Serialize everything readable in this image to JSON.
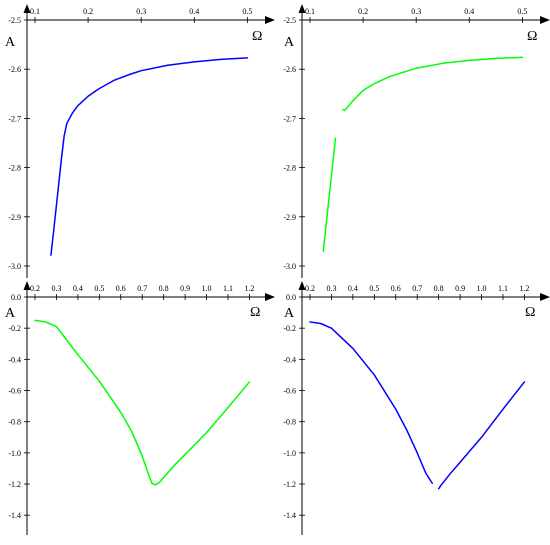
{
  "chart_data": [
    {
      "type": "line",
      "axis_names": {
        "x": "Ω",
        "y": "A"
      },
      "xlim": [
        0.1,
        0.52
      ],
      "ylim": [
        -3.0,
        -2.5
      ],
      "xticks": [
        0.1,
        0.2,
        0.3,
        0.4,
        0.5
      ],
      "xtick_labels": [
        "0.1",
        "0.2",
        "0.3",
        "0.4",
        "0.5"
      ],
      "yticks": [
        -2.5,
        -2.6,
        -2.7,
        -2.8,
        -2.9,
        -3.0
      ],
      "ytick_labels": [
        "-2.5",
        "-2.6",
        "-2.7",
        "-2.8",
        "-2.9",
        "-3.0"
      ],
      "grid": false,
      "series": [
        {
          "color": "#0000ff",
          "segments": [
            [
              [
                0.13,
                -2.978
              ],
              [
                0.135,
                -2.93
              ],
              [
                0.14,
                -2.88
              ],
              [
                0.145,
                -2.83
              ],
              [
                0.15,
                -2.78
              ],
              [
                0.155,
                -2.735
              ],
              [
                0.16,
                -2.71
              ],
              [
                0.17,
                -2.69
              ],
              [
                0.18,
                -2.675
              ],
              [
                0.2,
                -2.655
              ],
              [
                0.22,
                -2.64
              ],
              [
                0.25,
                -2.622
              ],
              [
                0.28,
                -2.61
              ],
              [
                0.3,
                -2.603
              ],
              [
                0.35,
                -2.592
              ],
              [
                0.4,
                -2.585
              ],
              [
                0.45,
                -2.58
              ],
              [
                0.5,
                -2.577
              ]
            ]
          ]
        }
      ]
    },
    {
      "type": "line",
      "axis_names": {
        "x": "Ω",
        "y": "A"
      },
      "xlim": [
        0.1,
        0.52
      ],
      "ylim": [
        -3.0,
        -2.5
      ],
      "xticks": [
        0.1,
        0.2,
        0.3,
        0.4,
        0.5
      ],
      "xtick_labels": [
        "0.1",
        "0.2",
        "0.3",
        "0.4",
        "0.5"
      ],
      "yticks": [
        -2.5,
        -2.6,
        -2.7,
        -2.8,
        -2.9,
        -3.0
      ],
      "ytick_labels": [
        "-2.5",
        "-2.6",
        "-2.7",
        "-2.8",
        "-2.9",
        "-3.0"
      ],
      "grid": false,
      "series": [
        {
          "color": "#00ff00",
          "segments": [
            [
              [
                0.125,
                -2.97
              ],
              [
                0.13,
                -2.92
              ],
              [
                0.135,
                -2.87
              ],
              [
                0.14,
                -2.82
              ],
              [
                0.145,
                -2.77
              ],
              [
                0.148,
                -2.74
              ]
            ],
            [
              [
                0.162,
                -2.682
              ],
              [
                0.165,
                -2.684
              ],
              [
                0.17,
                -2.678
              ],
              [
                0.18,
                -2.665
              ],
              [
                0.2,
                -2.643
              ],
              [
                0.22,
                -2.63
              ],
              [
                0.25,
                -2.615
              ],
              [
                0.3,
                -2.598
              ],
              [
                0.35,
                -2.588
              ],
              [
                0.4,
                -2.582
              ],
              [
                0.45,
                -2.578
              ],
              [
                0.5,
                -2.576
              ]
            ]
          ]
        }
      ]
    },
    {
      "type": "line",
      "axis_names": {
        "x": "Ω",
        "y": "A"
      },
      "xlim": [
        0.2,
        1.24
      ],
      "ylim": [
        -1.45,
        0.0
      ],
      "xticks": [
        0.2,
        0.3,
        0.4,
        0.5,
        0.6,
        0.7,
        0.8,
        0.9,
        1.0,
        1.1,
        1.2
      ],
      "xtick_labels": [
        "0.2",
        "0.3",
        "0.4",
        "0.5",
        "0.6",
        "0.7",
        "0.8",
        "0.9",
        "1.0",
        "1.1",
        "1.2"
      ],
      "yticks": [
        0.0,
        -0.2,
        -0.4,
        -0.6,
        -0.8,
        -1.0,
        -1.2,
        -1.4
      ],
      "ytick_labels": [
        "0.0",
        "-0.2",
        "-0.4",
        "-0.6",
        "-0.8",
        "-1.0",
        "-1.2",
        "-1.4"
      ],
      "grid": false,
      "series": [
        {
          "color": "#00ff00",
          "segments": [
            [
              [
                0.2,
                -0.15
              ],
              [
                0.25,
                -0.16
              ],
              [
                0.3,
                -0.19
              ],
              [
                0.35,
                -0.28
              ],
              [
                0.4,
                -0.37
              ],
              [
                0.5,
                -0.54
              ],
              [
                0.6,
                -0.74
              ],
              [
                0.65,
                -0.86
              ],
              [
                0.7,
                -1.02
              ],
              [
                0.73,
                -1.14
              ],
              [
                0.745,
                -1.195
              ],
              [
                0.76,
                -1.205
              ],
              [
                0.78,
                -1.19
              ],
              [
                0.85,
                -1.08
              ],
              [
                0.9,
                -1.01
              ],
              [
                1.0,
                -0.87
              ],
              [
                1.1,
                -0.71
              ],
              [
                1.2,
                -0.545
              ]
            ]
          ]
        }
      ]
    },
    {
      "type": "line",
      "axis_names": {
        "x": "Ω",
        "y": "A"
      },
      "xlim": [
        0.2,
        1.24
      ],
      "ylim": [
        -1.45,
        0.0
      ],
      "xticks": [
        0.2,
        0.3,
        0.4,
        0.5,
        0.6,
        0.7,
        0.8,
        0.9,
        1.0,
        1.1,
        1.2
      ],
      "xtick_labels": [
        "0.2",
        "0.3",
        "0.4",
        "0.5",
        "0.6",
        "0.7",
        "0.8",
        "0.9",
        "1.0",
        "1.1",
        "1.2"
      ],
      "yticks": [
        0.0,
        -0.2,
        -0.4,
        -0.6,
        -0.8,
        -1.0,
        -1.2,
        -1.4
      ],
      "ytick_labels": [
        "0.0",
        "-0.2",
        "-0.4",
        "-0.6",
        "-0.8",
        "-1.0",
        "-1.2",
        "-1.4"
      ],
      "grid": false,
      "series": [
        {
          "color": "#0000ff",
          "segments": [
            [
              [
                0.2,
                -0.16
              ],
              [
                0.25,
                -0.17
              ],
              [
                0.3,
                -0.2
              ],
              [
                0.4,
                -0.33
              ],
              [
                0.5,
                -0.5
              ],
              [
                0.6,
                -0.72
              ],
              [
                0.65,
                -0.85
              ],
              [
                0.7,
                -1.0
              ],
              [
                0.74,
                -1.13
              ],
              [
                0.77,
                -1.195
              ]
            ],
            [
              [
                0.8,
                -1.23
              ],
              [
                0.81,
                -1.21
              ],
              [
                0.85,
                -1.14
              ],
              [
                0.9,
                -1.06
              ],
              [
                1.0,
                -0.9
              ],
              [
                1.1,
                -0.72
              ],
              [
                1.2,
                -0.545
              ]
            ]
          ]
        }
      ]
    }
  ]
}
